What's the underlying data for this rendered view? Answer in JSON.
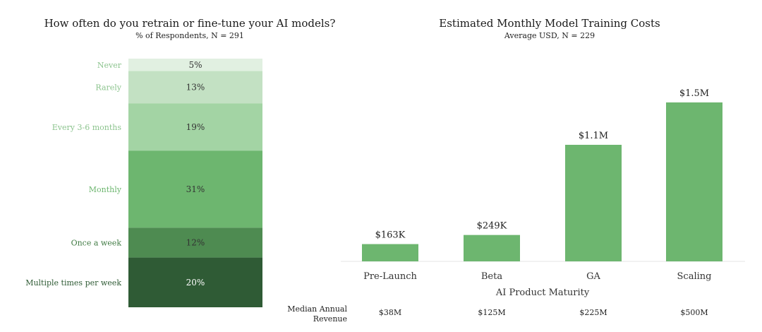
{
  "chart_data": [
    {
      "type": "bar",
      "stacked": true,
      "title": "How often do you retrain or fine-tune your AI models?",
      "subtitle": "% of Respondents, N = 291",
      "unit": "%",
      "categories": [
        "Never",
        "Rarely",
        "Every 3-6 months",
        "Monthly",
        "Once a week",
        "Multiple times per week"
      ],
      "values": [
        5,
        13,
        19,
        31,
        12,
        20
      ],
      "value_labels": [
        "5%",
        "13%",
        "19%",
        "31%",
        "12%",
        "20%"
      ],
      "colors": [
        "#e1f0e1",
        "#c3e1c3",
        "#a3d4a4",
        "#6db66f",
        "#4e8b51",
        "#2f5b35"
      ],
      "label_colors": [
        "#8cc48e",
        "#8cc48e",
        "#8cc48e",
        "#6db66f",
        "#3f7a42",
        "#2f5b35"
      ],
      "value_text_colors": [
        "#333333",
        "#333333",
        "#333333",
        "#333333",
        "#333333",
        "#ffffff"
      ]
    },
    {
      "type": "bar",
      "title": "Estimated Monthly Model Training Costs",
      "subtitle": "Average USD, N = 229",
      "xlabel": "AI Product Maturity",
      "categories": [
        "Pre-Launch",
        "Beta",
        "GA",
        "Scaling"
      ],
      "values": [
        163000,
        249000,
        1100000,
        1500000
      ],
      "value_labels": [
        "$163K",
        "$249K",
        "$1.1M",
        "$1.5M"
      ],
      "bar_color": "#6db66f",
      "ylim": [
        0,
        1600000
      ],
      "secondary_row": {
        "label": "Median Annual Revenue",
        "label_lines": [
          "Median Annual",
          "Revenue"
        ],
        "values": [
          "$38M",
          "$125M",
          "$225M",
          "$500M"
        ]
      }
    }
  ]
}
